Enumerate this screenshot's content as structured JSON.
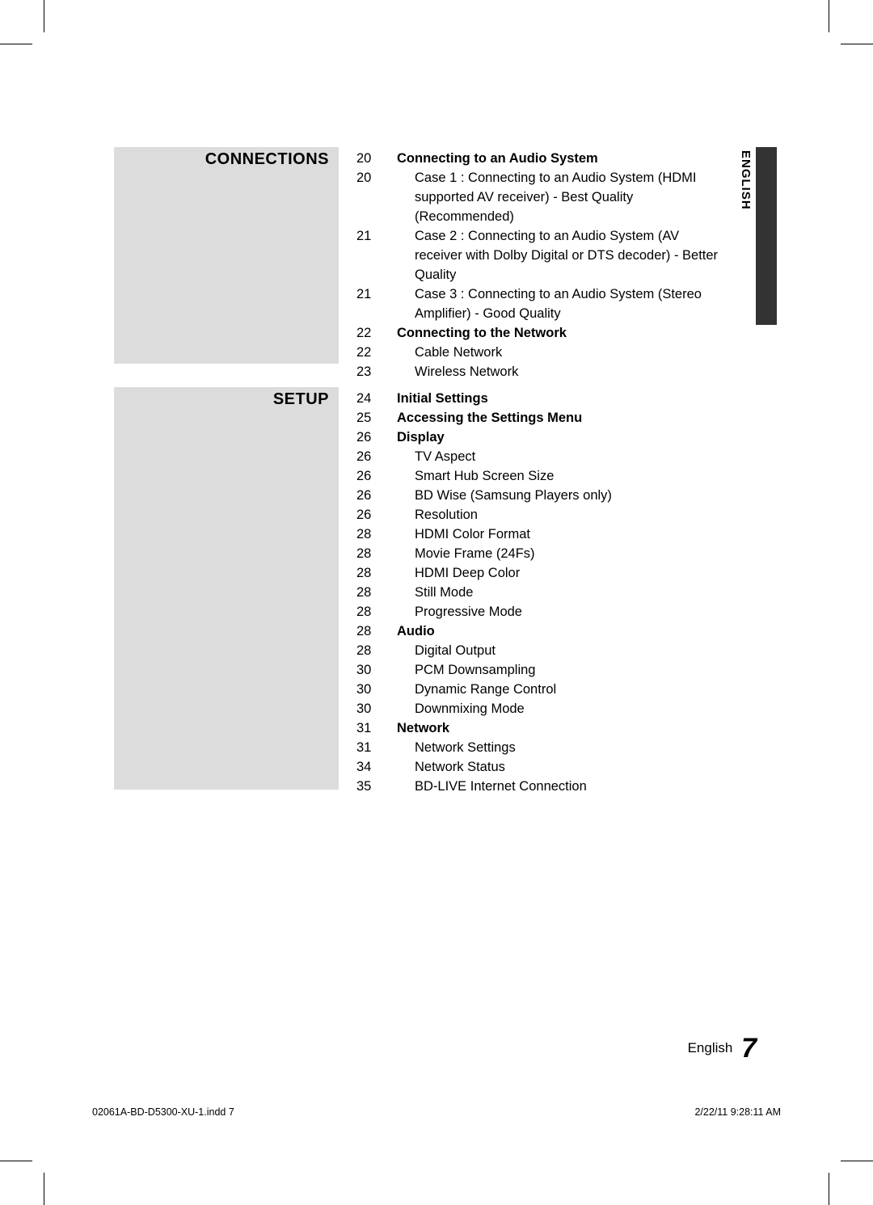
{
  "language_tab": "ENGLISH",
  "sections": {
    "connections": {
      "title": "CONNECTIONS",
      "entries": [
        {
          "page": "20",
          "text": "Connecting to an Audio System",
          "bold": true
        },
        {
          "page": "20",
          "text": "Case 1 : Connecting to an Audio System (HDMI supported AV receiver) - Best Quality (Recommended)",
          "indent": true
        },
        {
          "page": "21",
          "text": "Case 2 : Connecting to an Audio System (AV receiver with Dolby Digital or DTS decoder) - Better Quality",
          "indent": true
        },
        {
          "page": "21",
          "text": "Case 3 : Connecting to an Audio System (Stereo Amplifier) - Good Quality",
          "indent": true
        },
        {
          "page": "22",
          "text": "Connecting to the Network",
          "bold": true
        },
        {
          "page": "22",
          "text": "Cable Network",
          "indent": true
        },
        {
          "page": "23",
          "text": "Wireless Network",
          "indent": true
        }
      ]
    },
    "setup": {
      "title": "SETUP",
      "entries": [
        {
          "page": "24",
          "text": "Initial Settings",
          "bold": true
        },
        {
          "page": "25",
          "text": "Accessing the Settings Menu",
          "bold": true
        },
        {
          "page": "26",
          "text": "Display",
          "bold": true
        },
        {
          "page": "26",
          "text": "TV Aspect",
          "indent": true
        },
        {
          "page": "26",
          "text": "Smart Hub Screen Size",
          "indent": true
        },
        {
          "page": "26",
          "text": "BD Wise (Samsung Players only)",
          "indent": true
        },
        {
          "page": "26",
          "text": "Resolution",
          "indent": true
        },
        {
          "page": "28",
          "text": "HDMI Color Format",
          "indent": true
        },
        {
          "page": "28",
          "text": "Movie Frame (24Fs)",
          "indent": true
        },
        {
          "page": "28",
          "text": "HDMI Deep Color",
          "indent": true
        },
        {
          "page": "28",
          "text": "Still Mode",
          "indent": true
        },
        {
          "page": "28",
          "text": "Progressive Mode",
          "indent": true
        },
        {
          "page": "28",
          "text": "Audio",
          "bold": true
        },
        {
          "page": "28",
          "text": "Digital Output",
          "indent": true
        },
        {
          "page": "30",
          "text": "PCM Downsampling",
          "indent": true
        },
        {
          "page": "30",
          "text": "Dynamic Range Control",
          "indent": true
        },
        {
          "page": "30",
          "text": "Downmixing Mode",
          "indent": true
        },
        {
          "page": "31",
          "text": "Network",
          "bold": true
        },
        {
          "page": "31",
          "text": "Network Settings",
          "indent": true
        },
        {
          "page": "34",
          "text": "Network Status",
          "indent": true
        },
        {
          "page": "35",
          "text": "BD-LIVE Internet Connection",
          "indent": true
        }
      ]
    }
  },
  "footer": {
    "lang": "English",
    "page_number": "7",
    "file": "02061A-BD-D5300-XU-1.indd   7",
    "timestamp": "2/22/11   9:28:11 AM"
  }
}
